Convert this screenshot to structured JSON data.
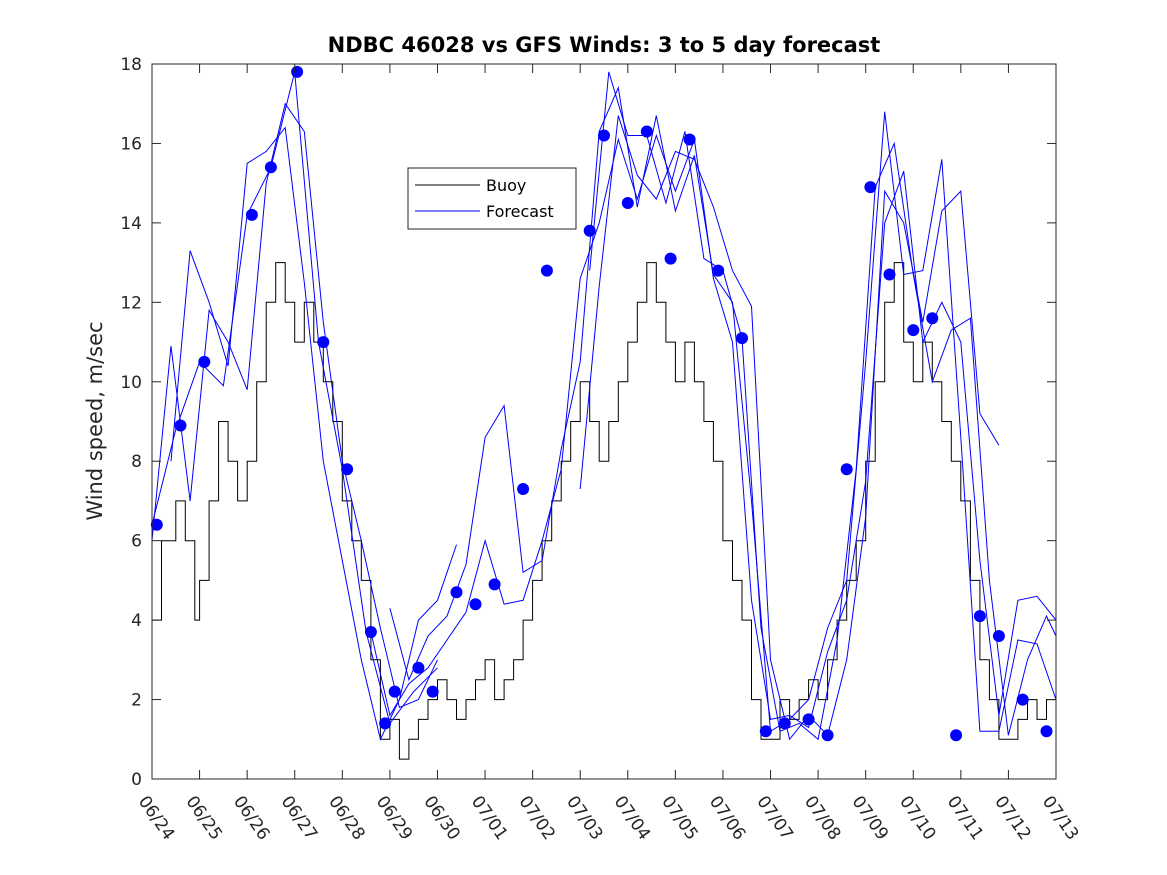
{
  "chart_data": {
    "type": "line",
    "title": "NDBC 46028 vs GFS Winds: 3 to 5 day forecast",
    "xlabel": "",
    "ylabel": "Wind speed, m/sec",
    "xlim": [
      "06/24",
      "07/13"
    ],
    "ylim": [
      0,
      18
    ],
    "yticks": [
      0,
      2,
      4,
      6,
      8,
      10,
      12,
      14,
      16,
      18
    ],
    "xtick_labels": [
      "06/24",
      "06/25",
      "06/26",
      "06/27",
      "06/28",
      "06/29",
      "06/30",
      "07/01",
      "07/02",
      "07/03",
      "07/04",
      "07/05",
      "07/06",
      "07/07",
      "07/08",
      "07/09",
      "07/10",
      "07/11",
      "07/12",
      "07/13"
    ],
    "grid": false,
    "legend": {
      "location": "top-center",
      "entries": [
        "Buoy",
        "Forecast"
      ]
    },
    "colors": {
      "buoy": "#000000",
      "forecast": "#0000ff",
      "markers": "#0000ff"
    },
    "buoy": {
      "name": "Buoy",
      "x": [
        0.0,
        0.2,
        0.5,
        0.7,
        0.9,
        1.0,
        1.2,
        1.4,
        1.6,
        1.8,
        2.0,
        2.2,
        2.4,
        2.6,
        2.8,
        3.0,
        3.2,
        3.4,
        3.6,
        3.8,
        4.0,
        4.2,
        4.4,
        4.6,
        4.8,
        5.0,
        5.2,
        5.4,
        5.6,
        5.8,
        6.0,
        6.2,
        6.4,
        6.6,
        6.8,
        7.0,
        7.2,
        7.4,
        7.6,
        7.8,
        8.0,
        8.2,
        8.4,
        8.6,
        8.8,
        9.0,
        9.2,
        9.4,
        9.6,
        9.8,
        10.0,
        10.2,
        10.4,
        10.6,
        10.8,
        11.0,
        11.2,
        11.4,
        11.6,
        11.8,
        12.0,
        12.2,
        12.4,
        12.6,
        12.8,
        13.0,
        13.2,
        13.4,
        13.6,
        13.8,
        14.0,
        14.2,
        14.4,
        14.6,
        14.8,
        15.0,
        15.2,
        15.4,
        15.6,
        15.8,
        16.0,
        16.2,
        16.4,
        16.6,
        16.8,
        17.0,
        17.2,
        17.4,
        17.6,
        17.8,
        18.0,
        18.2,
        18.4,
        18.6,
        18.8,
        19.0
      ],
      "y": [
        4.0,
        6.0,
        7.0,
        6.0,
        4.0,
        5.0,
        7.0,
        9.0,
        8.0,
        7.0,
        8.0,
        10.0,
        12.0,
        13.0,
        12.0,
        11.0,
        12.0,
        11.0,
        10.0,
        9.0,
        7.0,
        6.0,
        5.0,
        3.0,
        1.0,
        1.5,
        0.5,
        1.0,
        1.5,
        2.0,
        2.5,
        2.0,
        1.5,
        2.0,
        2.5,
        3.0,
        2.0,
        2.5,
        3.0,
        4.0,
        5.0,
        6.0,
        7.0,
        8.0,
        9.0,
        10.0,
        9.0,
        8.0,
        9.0,
        10.0,
        11.0,
        12.0,
        13.0,
        12.0,
        11.0,
        10.0,
        11.0,
        10.0,
        9.0,
        8.0,
        6.0,
        5.0,
        4.0,
        2.0,
        1.0,
        1.0,
        2.0,
        1.5,
        2.0,
        2.5,
        2.0,
        3.0,
        4.0,
        5.0,
        6.0,
        8.0,
        10.0,
        12.0,
        13.0,
        11.0,
        10.0,
        11.0,
        10.0,
        9.0,
        8.0,
        7.0,
        5.0,
        3.0,
        2.0,
        1.0,
        1.0,
        1.5,
        2.0,
        1.5,
        2.0,
        2.0
      ]
    },
    "forecast_runs": [
      {
        "x": [
          0.0,
          0.4,
          0.8,
          1.2,
          1.6,
          2.0,
          2.4,
          2.8,
          3.2,
          3.6,
          4.0,
          4.4,
          4.8,
          5.2,
          5.6,
          6.0
        ],
        "y": [
          6.0,
          10.9,
          7.0,
          11.8,
          11.0,
          9.8,
          15.0,
          17.0,
          16.3,
          11.5,
          8.0,
          6.0,
          3.8,
          1.8,
          2.0,
          3.0
        ]
      },
      {
        "x": [
          0.0,
          0.5,
          1.0,
          1.5,
          2.0,
          2.5,
          3.0,
          3.5,
          4.0,
          4.5,
          5.0,
          5.5,
          6.0
        ],
        "y": [
          6.4,
          8.8,
          10.5,
          9.9,
          14.2,
          15.4,
          17.8,
          11.0,
          7.8,
          3.7,
          1.4,
          2.2,
          2.8
        ]
      },
      {
        "x": [
          0.4,
          0.8,
          1.2,
          1.6,
          2.0,
          2.4,
          2.8,
          3.2,
          3.6,
          4.0,
          4.4,
          4.8,
          5.2,
          5.6,
          6.0,
          6.4
        ],
        "y": [
          8.0,
          13.3,
          12.0,
          10.4,
          15.5,
          15.8,
          16.4,
          12.5,
          8.0,
          5.5,
          3.0,
          1.0,
          2.0,
          4.0,
          4.5,
          5.9
        ]
      },
      {
        "x": [
          4.6,
          5.0,
          5.4,
          5.8,
          6.2,
          6.6,
          7.0,
          7.4,
          7.8,
          8.2,
          8.6,
          9.0,
          9.4,
          9.8,
          10.2,
          10.6,
          11.0,
          11.4,
          11.8,
          12.2,
          12.6,
          13.0,
          13.4,
          13.8,
          14.2,
          14.6,
          15.0,
          15.4,
          15.8,
          16.2,
          16.6,
          17.0,
          17.4,
          17.8,
          18.2,
          18.6,
          19.0
        ],
        "y": [
          3.7,
          1.6,
          2.4,
          2.8,
          3.5,
          4.2,
          6.0,
          4.4,
          4.5,
          6.0,
          7.8,
          12.6,
          14.0,
          16.1,
          14.6,
          16.2,
          14.8,
          16.1,
          12.6,
          11.0,
          4.5,
          1.5,
          1.6,
          1.3,
          3.2,
          4.5,
          7.5,
          14.0,
          15.3,
          11.0,
          12.0,
          11.0,
          5.5,
          1.6,
          4.5,
          4.6,
          4.0
        ]
      },
      {
        "x": [
          5.0,
          5.4,
          5.8,
          6.2,
          6.6,
          7.0,
          7.4,
          7.8,
          8.2,
          8.6,
          9.0,
          9.4,
          9.8,
          10.2,
          10.6,
          11.0,
          11.4,
          11.8,
          12.2,
          12.6,
          13.0,
          13.4,
          13.8,
          14.2,
          14.6,
          15.0,
          15.4,
          15.8,
          16.2,
          16.6,
          17.0,
          17.4,
          17.8,
          18.2,
          18.6,
          19.0
        ],
        "y": [
          4.3,
          2.5,
          3.6,
          4.1,
          5.4,
          8.6,
          9.4,
          5.2,
          5.5,
          8.3,
          10.5,
          16.3,
          17.4,
          14.4,
          16.7,
          14.3,
          15.7,
          12.7,
          12.0,
          7.0,
          1.2,
          1.5,
          2.0,
          3.8,
          5.0,
          10.5,
          16.8,
          12.7,
          12.8,
          15.6,
          8.6,
          1.2,
          1.2,
          3.5,
          3.4,
          2.0
        ]
      },
      {
        "x": [
          9.2,
          9.6,
          10.0,
          10.4,
          10.8,
          11.2,
          11.6,
          12.0,
          12.4,
          12.8,
          13.2,
          13.6,
          14.0,
          14.4,
          14.8,
          15.2,
          15.6,
          16.0,
          16.4,
          16.8,
          17.2,
          17.6,
          18.0,
          18.4,
          18.8,
          19.0
        ],
        "y": [
          12.8,
          17.8,
          16.2,
          16.2,
          14.5,
          16.3,
          13.1,
          12.8,
          11.1,
          3.8,
          1.2,
          1.4,
          1.0,
          3.5,
          7.8,
          14.9,
          16.0,
          12.7,
          10.0,
          11.3,
          11.6,
          5.0,
          1.1,
          3.0,
          4.1,
          3.6
        ]
      },
      {
        "x": [
          9.0,
          9.4,
          9.8,
          10.2,
          10.6,
          11.0,
          11.4,
          11.8,
          12.2,
          12.6,
          13.0,
          13.4,
          13.8,
          14.2,
          14.6,
          15.0,
          15.4,
          15.8,
          16.2,
          16.6,
          17.0,
          17.4,
          17.8
        ],
        "y": [
          7.3,
          12.4,
          16.7,
          15.2,
          14.6,
          15.8,
          15.6,
          14.4,
          12.8,
          11.9,
          3.0,
          1.0,
          1.6,
          1.1,
          3.0,
          6.6,
          14.8,
          14.0,
          11.5,
          14.3,
          14.8,
          9.2,
          8.4
        ]
      }
    ],
    "forecast_markers": {
      "x": [
        0.1,
        0.6,
        1.1,
        2.1,
        2.5,
        3.05,
        3.6,
        4.1,
        4.6,
        4.9,
        5.1,
        5.6,
        5.9,
        6.4,
        6.8,
        7.2,
        7.8,
        8.3,
        9.2,
        9.5,
        10.0,
        10.4,
        10.9,
        11.3,
        11.9,
        12.4,
        12.9,
        13.3,
        13.8,
        14.2,
        14.6,
        15.1,
        15.5,
        16.0,
        16.4,
        16.9,
        17.4,
        17.8,
        18.3,
        18.8
      ],
      "y": [
        6.4,
        8.9,
        10.5,
        14.2,
        15.4,
        17.8,
        11.0,
        7.8,
        3.7,
        1.4,
        2.2,
        2.8,
        2.2,
        4.7,
        4.4,
        4.9,
        7.3,
        12.8,
        13.8,
        16.2,
        14.5,
        16.3,
        13.1,
        16.1,
        12.8,
        11.1,
        1.2,
        1.4,
        1.5,
        1.1,
        7.8,
        14.9,
        12.7,
        11.3,
        11.6,
        1.1,
        4.1,
        3.6,
        2.0,
        1.2
      ]
    }
  }
}
